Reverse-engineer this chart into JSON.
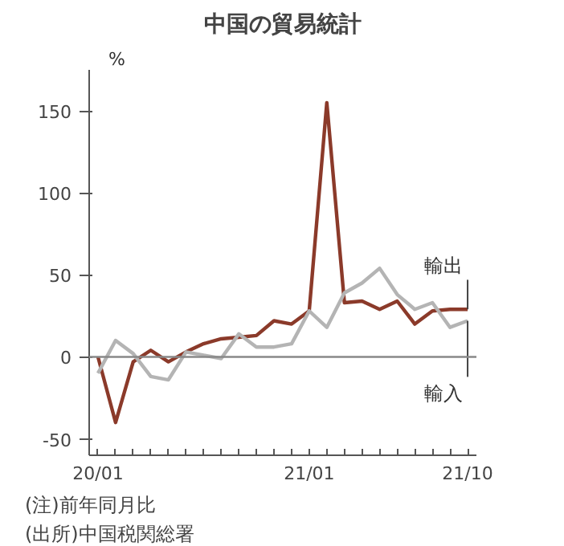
{
  "chart_data": {
    "type": "line",
    "title": "中国の貿易統計",
    "ylabel": "%",
    "categories": [
      "20/01",
      null,
      null,
      null,
      null,
      null,
      null,
      null,
      null,
      null,
      null,
      null,
      "21/01",
      null,
      null,
      null,
      null,
      null,
      null,
      null,
      null,
      "21/10"
    ],
    "series": [
      {
        "name": "輸出",
        "color": "#8b3a2a",
        "values": [
          0,
          -40,
          -3,
          4,
          -3,
          3,
          8,
          11,
          12,
          13,
          22,
          20,
          28,
          155,
          33,
          34,
          29,
          34,
          20,
          28,
          29,
          29
        ]
      },
      {
        "name": "輸入",
        "color": "#b4b4b4",
        "values": [
          -10,
          10,
          2,
          -12,
          -14,
          3,
          1,
          -1,
          14,
          6,
          6,
          8,
          28,
          18,
          39,
          45,
          54,
          38,
          29,
          33,
          18,
          22
        ]
      }
    ],
    "ylim": [
      -60,
      175
    ],
    "yticks": [
      -50,
      0,
      50,
      100,
      150
    ],
    "ref_lines": [
      {
        "axis": "y",
        "value": 0,
        "color": "#888888"
      }
    ],
    "grid": false,
    "marker": "none",
    "line_style": "solid",
    "annotations": [
      "(注)前年同月比",
      "(出所)中国税関総署"
    ]
  }
}
